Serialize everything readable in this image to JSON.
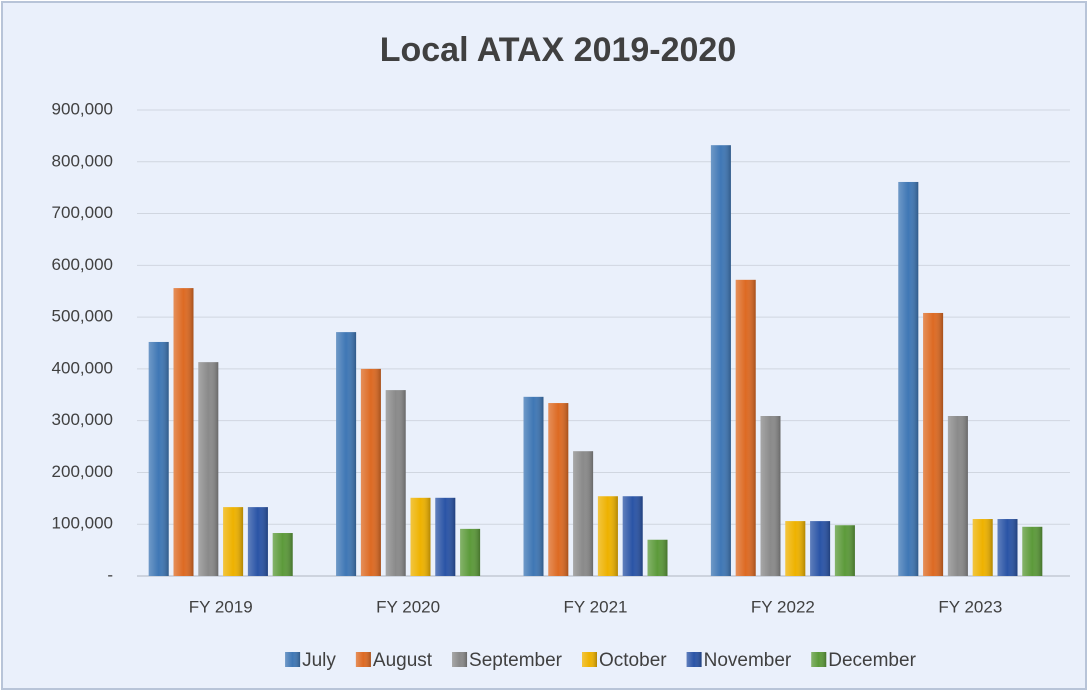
{
  "chart_data": {
    "type": "bar",
    "title": "Local ATAX 2019-2020",
    "categories": [
      "FY 2019",
      "FY 2020",
      "FY 2021",
      "FY 2022",
      "FY 2023"
    ],
    "series": [
      {
        "name": "July",
        "color": "#3f77b5",
        "values": [
          452000,
          471000,
          346000,
          832000,
          761000
        ]
      },
      {
        "name": "August",
        "color": "#dd6a23",
        "values": [
          556000,
          400000,
          334000,
          572000,
          508000
        ]
      },
      {
        "name": "September",
        "color": "#8a8a8a",
        "values": [
          413000,
          359000,
          241000,
          309000,
          309000
        ]
      },
      {
        "name": "October",
        "color": "#eeb200",
        "values": [
          133000,
          151000,
          154000,
          106000,
          110000
        ]
      },
      {
        "name": "November",
        "color": "#2a54a6",
        "values": [
          133000,
          151000,
          154000,
          106000,
          110000
        ]
      },
      {
        "name": "December",
        "color": "#5c9a3a",
        "values": [
          83000,
          91000,
          70000,
          98000,
          95000
        ]
      }
    ],
    "ylim": [
      0,
      900000
    ],
    "yticks": [
      {
        "value": 0,
        "label": "-"
      },
      {
        "value": 100000,
        "label": "100,000"
      },
      {
        "value": 200000,
        "label": "200,000"
      },
      {
        "value": 300000,
        "label": "300,000"
      },
      {
        "value": 400000,
        "label": "400,000"
      },
      {
        "value": 500000,
        "label": "500,000"
      },
      {
        "value": 600000,
        "label": "600,000"
      },
      {
        "value": 700000,
        "label": "700,000"
      },
      {
        "value": 800000,
        "label": "800,000"
      },
      {
        "value": 900000,
        "label": "900,000"
      }
    ],
    "grid": true,
    "legend": "bottom"
  }
}
